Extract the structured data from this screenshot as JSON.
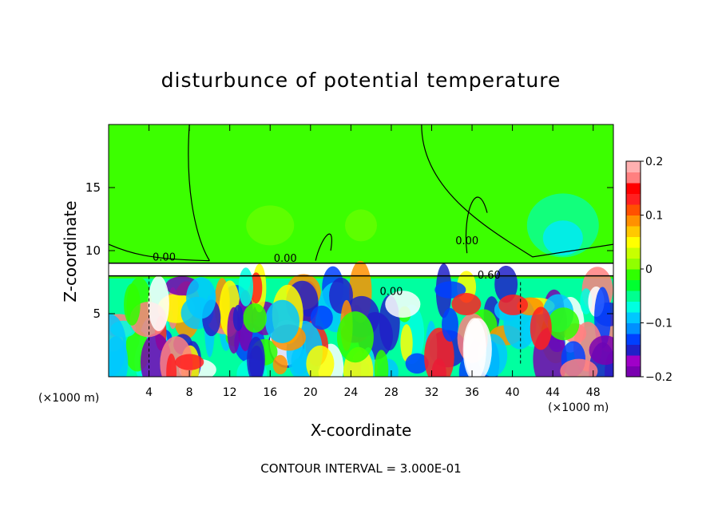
{
  "chart_data": {
    "type": "heatmap",
    "title": "disturbunce of potential temperature",
    "xlabel": "X-coordinate",
    "ylabel": "Z-coordinate",
    "x_unit": "(×1000 m)",
    "z_unit": "(×1000 m)",
    "footer": "CONTOUR INTERVAL = 3.000E-01",
    "xlim": [
      0,
      50
    ],
    "ylim": [
      0,
      20
    ],
    "x_ticks": [
      4,
      8,
      12,
      16,
      20,
      24,
      28,
      32,
      36,
      40,
      44,
      48
    ],
    "x_tick_labels": [
      "4",
      "8",
      "12",
      "16",
      "20",
      "24",
      "28",
      "32",
      "36",
      "40",
      "44",
      "48"
    ],
    "y_ticks": [
      5,
      10,
      15
    ],
    "y_tick_labels": [
      "5",
      "10",
      "15"
    ],
    "colorbar": {
      "range": [
        -0.2,
        0.2
      ],
      "ticks": [
        0.2,
        0.1,
        0,
        -0.1,
        -0.2
      ],
      "tick_labels": [
        "0.2",
        "0.1",
        "0",
        "−0.1",
        "−0.2"
      ],
      "colors": [
        "#7a00b0",
        "#a000c8",
        "#2020c8",
        "#0040ff",
        "#0090ff",
        "#00c8ff",
        "#00ffe0",
        "#00ff90",
        "#00ff30",
        "#30ff00",
        "#90ff00",
        "#c8ff00",
        "#ffff00",
        "#ffc800",
        "#ff9000",
        "#ff5000",
        "#ff2020",
        "#ff0000",
        "#ff8080",
        "#ffb0b0"
      ]
    },
    "contour_labels": [
      {
        "text": "0.00",
        "x": 5.5,
        "z": 9.2
      },
      {
        "text": "0.00",
        "x": 17.5,
        "z": 9.1
      },
      {
        "text": "0.00",
        "x": 35.5,
        "z": 10.5
      },
      {
        "text": "-0.60",
        "x": 37.5,
        "z": 7.8
      },
      {
        "text": "0.00",
        "x": 28,
        "z": 6.5
      }
    ]
  }
}
